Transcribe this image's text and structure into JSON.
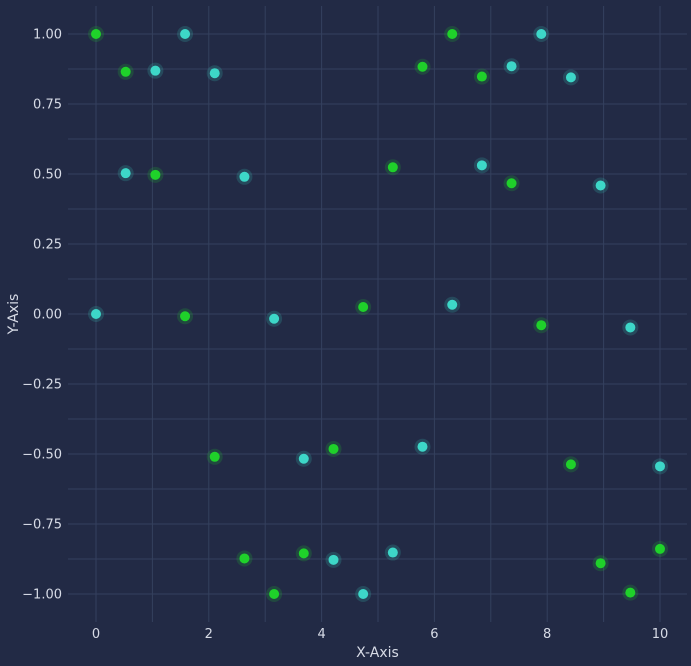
{
  "chart_data": {
    "type": "scatter",
    "title": "",
    "xlabel": "X-Axis",
    "ylabel": "Y-Axis",
    "xlim": [
      -0.5,
      10.5
    ],
    "ylim": [
      -1.1,
      1.1
    ],
    "x_ticks": [
      0,
      2,
      4,
      6,
      8,
      10
    ],
    "x_tick_labels": [
      "0",
      "2",
      "4",
      "6",
      "8",
      "10"
    ],
    "y_ticks": [
      1.0,
      0.75,
      0.5,
      0.25,
      0.0,
      -0.25,
      -0.5,
      -0.75,
      -1.0
    ],
    "y_tick_labels": [
      "1.00",
      "0.75",
      "0.50",
      "0.25",
      "0.00",
      "−0.25",
      "−0.50",
      "−0.75",
      "−1.00"
    ],
    "grid": true,
    "legend": "none",
    "background": "#222a45",
    "series": [
      {
        "color": "#1fd12a",
        "x": [
          0.0,
          0.526,
          1.053,
          1.579,
          2.105,
          2.632,
          3.158,
          3.684,
          4.211,
          4.737,
          5.263,
          5.789,
          6.316,
          6.842,
          7.368,
          7.895,
          8.421,
          8.947,
          9.474,
          10.0
        ],
        "y": [
          1.0,
          0.865,
          0.497,
          -0.008,
          -0.51,
          -0.873,
          -1.0,
          -0.855,
          -0.482,
          0.025,
          0.524,
          0.883,
          1.0,
          0.848,
          0.467,
          -0.04,
          -0.537,
          -0.89,
          -0.995,
          -0.839
        ]
      },
      {
        "color": "#3dd7c8",
        "x": [
          0.0,
          0.526,
          1.053,
          1.579,
          2.105,
          2.632,
          3.158,
          3.684,
          4.211,
          4.737,
          5.263,
          5.789,
          6.316,
          6.842,
          7.368,
          7.895,
          8.421,
          8.947,
          9.474,
          10.0
        ],
        "y": [
          0.0,
          0.503,
          0.869,
          1.0,
          0.86,
          0.49,
          -0.017,
          -0.517,
          -0.878,
          -1.0,
          -0.852,
          -0.474,
          0.033,
          0.531,
          0.885,
          1.0,
          0.845,
          0.459,
          -0.048,
          -0.544
        ]
      }
    ]
  }
}
